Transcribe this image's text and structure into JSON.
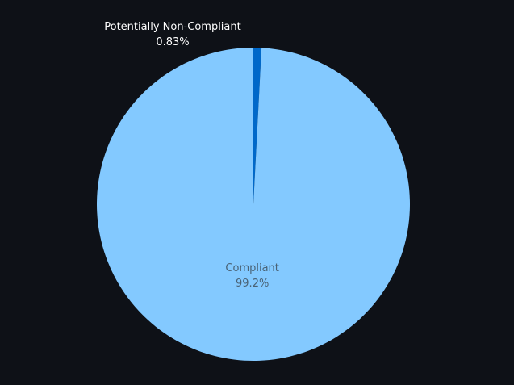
{
  "chart_data": {
    "type": "pie",
    "slices": [
      {
        "label": "Potentially Non-Compliant",
        "value": 0.83,
        "value_label": "0.83%",
        "color": "#0068c9",
        "label_color": "#ffffff",
        "label_position": "outside"
      },
      {
        "label": "Compliant",
        "value": 99.17,
        "value_label": "99.2%",
        "color": "#83c9ff",
        "label_color": "#4a6275",
        "label_position": "inside"
      }
    ],
    "start": "top",
    "direction": "clockwise",
    "background": "#0e1117",
    "legend": "none"
  }
}
